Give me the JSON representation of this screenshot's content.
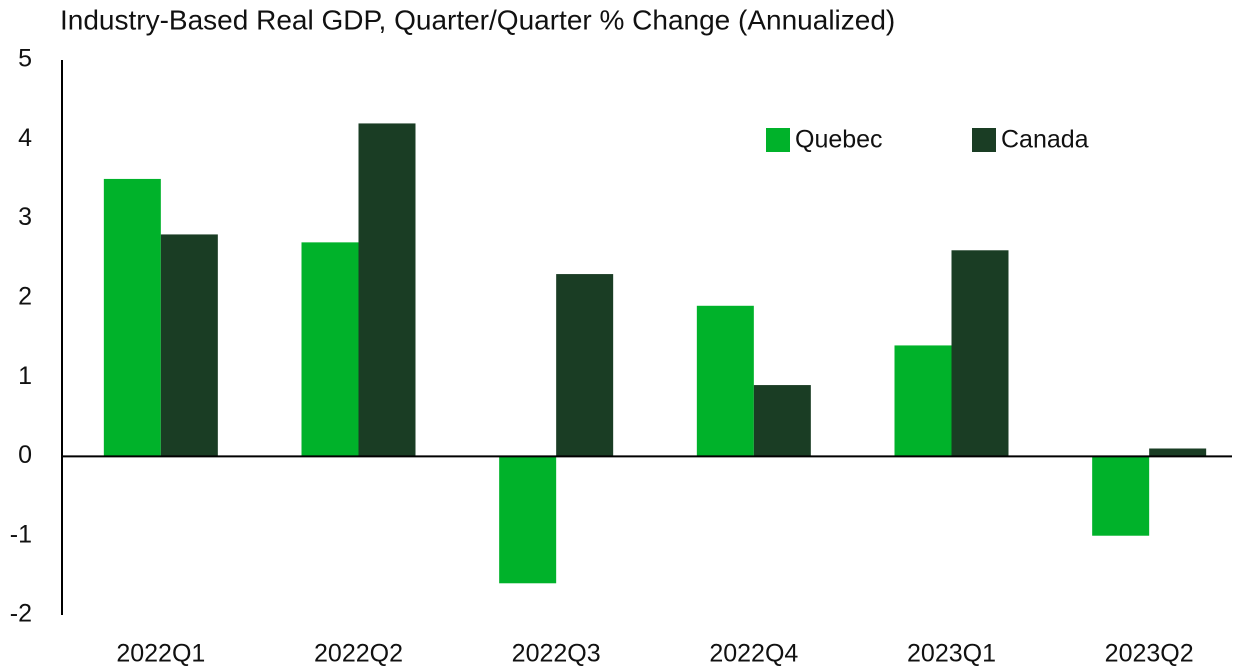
{
  "chart_data": {
    "type": "bar",
    "title": "Industry-Based Real GDP, Quarter/Quarter % Change (Annualized)",
    "categories": [
      "2022Q1",
      "2022Q2",
      "2022Q3",
      "2022Q4",
      "2023Q1",
      "2023Q2"
    ],
    "series": [
      {
        "name": "Quebec",
        "color": "#00b22a",
        "values": [
          3.5,
          2.7,
          -1.6,
          1.9,
          1.4,
          -1.0
        ]
      },
      {
        "name": "Canada",
        "color": "#1a3d24",
        "values": [
          2.8,
          4.2,
          2.3,
          0.9,
          2.6,
          0.1
        ]
      }
    ],
    "ylim": [
      -2,
      5
    ],
    "yticks": [
      -2,
      -1,
      0,
      1,
      2,
      3,
      4,
      5
    ],
    "grid": false,
    "legend": "top-right"
  }
}
